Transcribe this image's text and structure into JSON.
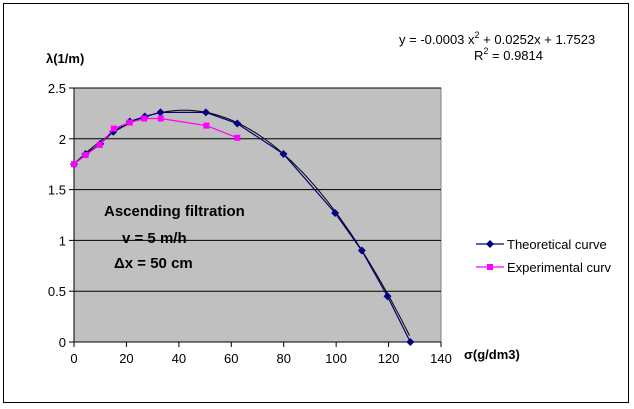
{
  "chart_data": {
    "type": "line",
    "title": "",
    "xlabel": "σ(g/dm3)",
    "ylabel": "λ(1/m)",
    "xlim": [
      0,
      140
    ],
    "ylim": [
      0,
      2.5
    ],
    "x_ticks": [
      "0",
      "20",
      "40",
      "60",
      "80",
      "100",
      "120",
      "140"
    ],
    "y_ticks": [
      "0",
      "0.5",
      "1",
      "1.5",
      "2",
      "2.5"
    ],
    "grid": "horizontal",
    "plot_background": "#C0C0C0",
    "legend_position": "right",
    "series": [
      {
        "name": "Theoretical curve",
        "color": "#000080",
        "marker": "diamond",
        "points": [
          [
            0,
            1.75
          ],
          [
            4.4,
            1.85
          ],
          [
            10,
            1.95
          ],
          [
            15,
            2.07
          ],
          [
            21.3,
            2.17
          ],
          [
            27,
            2.22
          ],
          [
            33,
            2.26
          ],
          [
            50.3,
            2.26
          ],
          [
            62.3,
            2.15
          ],
          [
            79.9,
            1.85
          ],
          [
            99.6,
            1.27
          ],
          [
            109.8,
            0.9
          ],
          [
            119.6,
            0.45
          ],
          [
            128.3,
            0.0
          ]
        ]
      },
      {
        "name": "Experimental curv",
        "color": "#FF00FF",
        "marker": "square",
        "points": [
          [
            0,
            1.75
          ],
          [
            4.4,
            1.84
          ],
          [
            9.8,
            1.94
          ],
          [
            15.2,
            2.1
          ],
          [
            21.3,
            2.16
          ],
          [
            26.8,
            2.2
          ],
          [
            33.1,
            2.2
          ],
          [
            50.5,
            2.13
          ],
          [
            62.3,
            2.01
          ]
        ]
      }
    ],
    "trendline": {
      "equation_prefix": "y = -0.0003 x",
      "equation_exp": "2",
      "equation_suffix": " + 0.0252x + 1.7523",
      "r2_prefix": "R",
      "r2_exp": "2",
      "r2_suffix": " = 0.9814",
      "coefficients": [
        -0.0003,
        0.0252,
        1.7523
      ],
      "r_squared": 0.9814
    },
    "annotation": {
      "line1": "Ascending filtration",
      "line2": "v = 5 m/h",
      "line3": "Δx = 50 cm"
    }
  }
}
